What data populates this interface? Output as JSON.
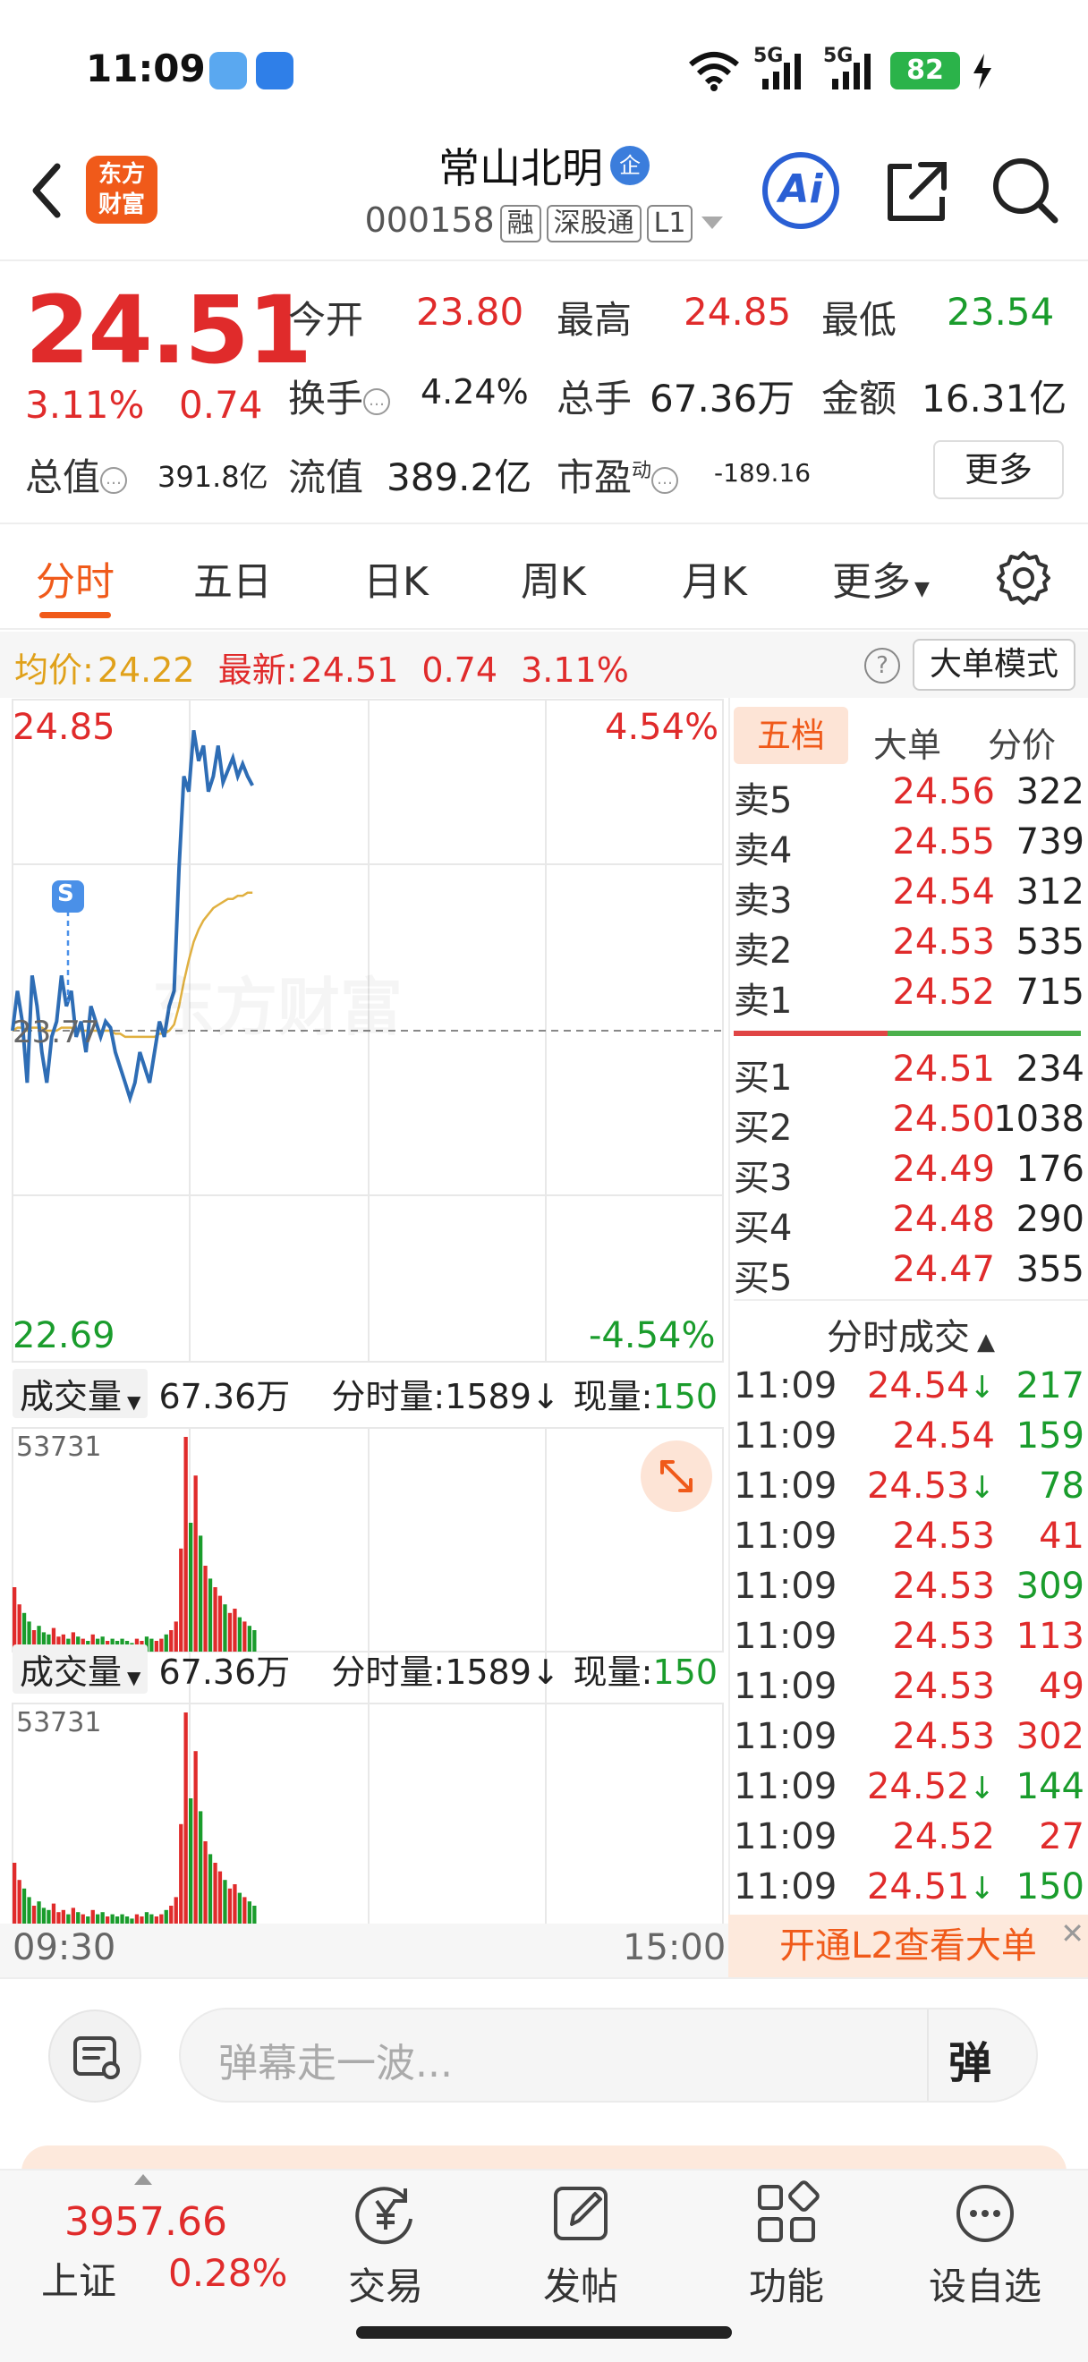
{
  "status": {
    "time": "11:09",
    "network1": "5G",
    "network2": "5G",
    "battery": "82"
  },
  "nav": {
    "logo_line1": "东方",
    "logo_line2": "财富",
    "stock_name": "常山北明",
    "corp_badge": "企",
    "stock_code": "000158",
    "tag_margin": "融",
    "tag_connect": "深股通",
    "tag_level": "L1",
    "ai_label": "Ai"
  },
  "quote": {
    "price": "24.51",
    "change_pct": "3.11%",
    "change_amt": "0.74",
    "open_label": "今开",
    "open": "23.80",
    "high_label": "最高",
    "high": "24.85",
    "low_label": "最低",
    "low": "23.54",
    "turnover_label": "换手",
    "turnover": "4.24%",
    "volume_label": "总手",
    "volume": "67.36万",
    "amount_label": "金额",
    "amount": "16.31亿",
    "mktcap_label": "总值",
    "mktcap": "391.8亿",
    "float_label": "流值",
    "float_cap": "389.2亿",
    "pe_label": "市盈",
    "pe_sup": "动",
    "pe": "-189.16",
    "more_btn": "更多"
  },
  "tabs": [
    "分时",
    "五日",
    "日K",
    "周K",
    "月K",
    "更多"
  ],
  "info_bar": {
    "avg_label": "均价:",
    "avg": "24.22",
    "latest_label": "最新:",
    "latest": "24.51",
    "chg": "0.74",
    "pct": "3.11%",
    "help": "?",
    "big_order_mode": "大单模式"
  },
  "chart": {
    "y_max": "24.85",
    "y_min": "22.69",
    "pct_max": "4.54%",
    "pct_min": "-4.54%",
    "ref_price": "23.77",
    "watermark": "东方财富",
    "signal": "S",
    "vol_bar": {
      "label": "成交量",
      "value": "67.36万",
      "minute_vol_label": "分时量:",
      "minute_vol": "1589",
      "cur_vol_label": "现量:",
      "cur_vol": "150",
      "max": "53731"
    },
    "time_start": "09:30",
    "time_end": "15:00"
  },
  "chart_data": {
    "type": "line",
    "title": "",
    "ylim": [
      22.69,
      24.85
    ],
    "reference": 23.77,
    "x_range": [
      "09:30",
      "15:00"
    ],
    "series": [
      {
        "name": "",
        "color": "#2e6db5",
        "values": [
          23.77,
          23.9,
          23.8,
          23.6,
          23.95,
          23.85,
          23.7,
          23.6,
          23.75,
          23.8,
          23.95,
          23.85,
          23.9,
          23.75,
          23.8,
          23.7,
          23.85,
          23.8,
          23.75,
          23.8,
          23.78,
          23.7,
          23.65,
          23.6,
          23.55,
          23.6,
          23.7,
          23.65,
          23.6,
          23.7,
          23.8,
          23.75,
          23.85,
          23.9,
          24.3,
          24.6,
          24.55,
          24.75,
          24.65,
          24.7,
          24.55,
          24.6,
          24.7,
          24.58,
          24.62,
          24.66,
          24.6,
          24.64,
          24.6,
          24.57
        ]
      },
      {
        "name": "",
        "color": "#e0b040",
        "values": [
          23.77,
          23.78,
          23.78,
          23.77,
          23.78,
          23.78,
          23.78,
          23.77,
          23.77,
          23.77,
          23.78,
          23.78,
          23.78,
          23.77,
          23.77,
          23.77,
          23.77,
          23.77,
          23.77,
          23.77,
          23.77,
          23.76,
          23.76,
          23.75,
          23.75,
          23.75,
          23.75,
          23.75,
          23.75,
          23.75,
          23.76,
          23.76,
          23.77,
          23.79,
          23.85,
          23.93,
          24.0,
          24.06,
          24.1,
          24.13,
          24.15,
          24.17,
          24.18,
          24.19,
          24.2,
          24.2,
          24.21,
          24.21,
          24.22,
          24.22
        ]
      }
    ],
    "volume": [
      30,
      22,
      18,
      14,
      10,
      12,
      9,
      8,
      11,
      7,
      8,
      6,
      9,
      7,
      6,
      5,
      8,
      6,
      7,
      5,
      6,
      5,
      6,
      5,
      4,
      6,
      5,
      7,
      6,
      5,
      6,
      8,
      10,
      14,
      48,
      100,
      60,
      82,
      54,
      40,
      34,
      30,
      26,
      22,
      18,
      20,
      16,
      14,
      12,
      10
    ]
  },
  "order_book": {
    "tabs": [
      "五档",
      "大单",
      "分价"
    ],
    "asks": [
      {
        "label": "卖5",
        "price": "24.56",
        "vol": "322"
      },
      {
        "label": "卖4",
        "price": "24.55",
        "vol": "739"
      },
      {
        "label": "卖3",
        "price": "24.54",
        "vol": "312"
      },
      {
        "label": "卖2",
        "price": "24.53",
        "vol": "535"
      },
      {
        "label": "卖1",
        "price": "24.52",
        "vol": "715"
      }
    ],
    "bids": [
      {
        "label": "买1",
        "price": "24.51",
        "vol": "234"
      },
      {
        "label": "买2",
        "price": "24.50",
        "vol": "1038"
      },
      {
        "label": "买3",
        "price": "24.49",
        "vol": "176"
      },
      {
        "label": "买4",
        "price": "24.48",
        "vol": "290"
      },
      {
        "label": "买5",
        "price": "24.47",
        "vol": "355"
      }
    ],
    "trades_title": "分时成交",
    "trades": [
      {
        "time": "11:09",
        "price": "24.54",
        "arrow": "↓",
        "vol": "217",
        "vol_color": "#1a9c2c"
      },
      {
        "time": "11:09",
        "price": "24.54",
        "arrow": "",
        "vol": "159",
        "vol_color": "#1a9c2c"
      },
      {
        "time": "11:09",
        "price": "24.53",
        "arrow": "↓",
        "vol": "78",
        "vol_color": "#1a9c2c"
      },
      {
        "time": "11:09",
        "price": "24.53",
        "arrow": "",
        "vol": "41",
        "vol_color": "#e02b2b"
      },
      {
        "time": "11:09",
        "price": "24.53",
        "arrow": "",
        "vol": "309",
        "vol_color": "#1a9c2c"
      },
      {
        "time": "11:09",
        "price": "24.53",
        "arrow": "",
        "vol": "113",
        "vol_color": "#e02b2b"
      },
      {
        "time": "11:09",
        "price": "24.53",
        "arrow": "",
        "vol": "49",
        "vol_color": "#e02b2b"
      },
      {
        "time": "11:09",
        "price": "24.53",
        "arrow": "",
        "vol": "302",
        "vol_color": "#e02b2b"
      },
      {
        "time": "11:09",
        "price": "24.52",
        "arrow": "↓",
        "vol": "144",
        "vol_color": "#1a9c2c"
      },
      {
        "time": "11:09",
        "price": "24.52",
        "arrow": "",
        "vol": "27",
        "vol_color": "#e02b2b"
      },
      {
        "time": "11:09",
        "price": "24.51",
        "arrow": "↓",
        "vol": "150",
        "vol_color": "#1a9c2c"
      }
    ],
    "l2_banner": "开通L2查看大单",
    "close": "✕"
  },
  "danmaku": {
    "placeholder": "弹幕走一波...",
    "button": "弹"
  },
  "bottom_nav": {
    "index_value": "3957.66",
    "index_name": "上证",
    "index_chg": "0.28%",
    "items": [
      {
        "label": "交易"
      },
      {
        "label": "发帖"
      },
      {
        "label": "功能"
      },
      {
        "label": "设自选"
      }
    ]
  }
}
